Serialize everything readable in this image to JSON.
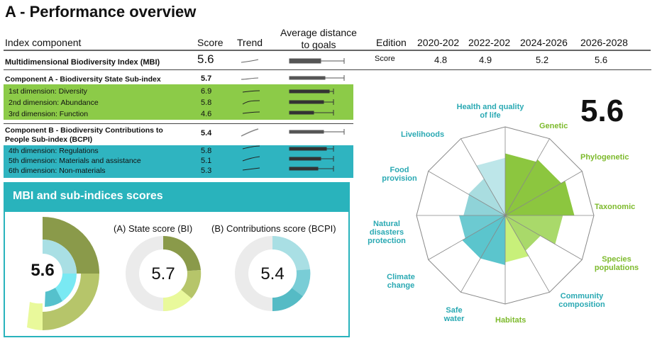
{
  "page": {
    "title": "A - Performance overview"
  },
  "table": {
    "headers": {
      "component": "Index component",
      "score": "Score",
      "trend": "Trend",
      "distance": "Average distance to goals"
    },
    "rows": [
      {
        "label": "Multidimensional Biodiversity Index (MBI)",
        "score": "5.6",
        "bold": true,
        "band": "none"
      },
      {
        "label": "Component A - Biodiversity State Sub-index",
        "score": "5.7",
        "bold": true,
        "band": "none"
      },
      {
        "label": "1st dimension: Diversity",
        "score": "6.9",
        "bold": false,
        "band": "green"
      },
      {
        "label": "2nd dimension: Abundance",
        "score": "5.8",
        "bold": false,
        "band": "green"
      },
      {
        "label": "3rd dimension: Function",
        "score": "4.6",
        "bold": false,
        "band": "green"
      },
      {
        "label": "Component B - Biodiversity Contributions to People Sub-index (BCPI)",
        "score": "5.4",
        "bold": true,
        "band": "none"
      },
      {
        "label": "4th dimension: Regulations",
        "score": "5.8",
        "bold": false,
        "band": "teal"
      },
      {
        "label": "5th dimension: Materials and assistance",
        "score": "5.1",
        "bold": false,
        "band": "teal"
      },
      {
        "label": "6th dimension: Non-materials",
        "score": "5.3",
        "bold": false,
        "band": "teal"
      }
    ]
  },
  "editions": {
    "label": "Edition",
    "periods": [
      "2020-202",
      "2022-202",
      "2024-2026",
      "2026-2028"
    ],
    "row_label": "Score",
    "scores": [
      "4.8",
      "4.9",
      "5.2",
      "5.6"
    ]
  },
  "scores_panel": {
    "title": "MBI and sub-indices scores",
    "mbi_value": "5.6",
    "state_label": "(A) State score (BI)",
    "state_value": "5.7",
    "contrib_label": "(B) Contributions score (BCPI)",
    "contrib_value": "5.4"
  },
  "radar": {
    "big_score": "5.6",
    "labels": {
      "health": "Health and quality of life",
      "genetic": "Genetic",
      "phylogenetic": "Phylogenetic",
      "taxonomic": "Taxonomic",
      "species": "Species populations",
      "community": "Community composition",
      "habitats": "Habitats",
      "safe_water": "Safe water",
      "climate": "Climate change",
      "natural": "Natural disasters protection",
      "food": "Food provision",
      "livelihoods": "Livelihoods"
    }
  },
  "chart_data": {
    "type": "radar",
    "categories": [
      "Genetic",
      "Phylogenetic",
      "Taxonomic",
      "Species populations",
      "Community composition",
      "Habitats",
      "Safe water",
      "Climate change",
      "Natural disasters protection",
      "Food provision",
      "Livelihoods",
      "Health and quality of life"
    ],
    "values": [
      7.0,
      7.3,
      7.8,
      6.5,
      4.6,
      5.3,
      5.6,
      5.6,
      5.2,
      4.7,
      4.8,
      6.5
    ],
    "ylim": [
      0,
      10
    ],
    "colors": [
      "#8cc63f",
      "#8cc63f",
      "#8cc63f",
      "#a9d96a",
      "#a9d96a",
      "#c8f07a",
      "#5bc5cd",
      "#5bc5cd",
      "#6ccad1",
      "#8fd3d8",
      "#a9dde0",
      "#bde6e9"
    ]
  },
  "colors": {
    "green_band": "#8ccb48",
    "teal_band": "#2fb4c0",
    "panel": "#29b3bc",
    "radar_green_label": "#7dba2c",
    "radar_teal_label": "#2aa9b3"
  }
}
